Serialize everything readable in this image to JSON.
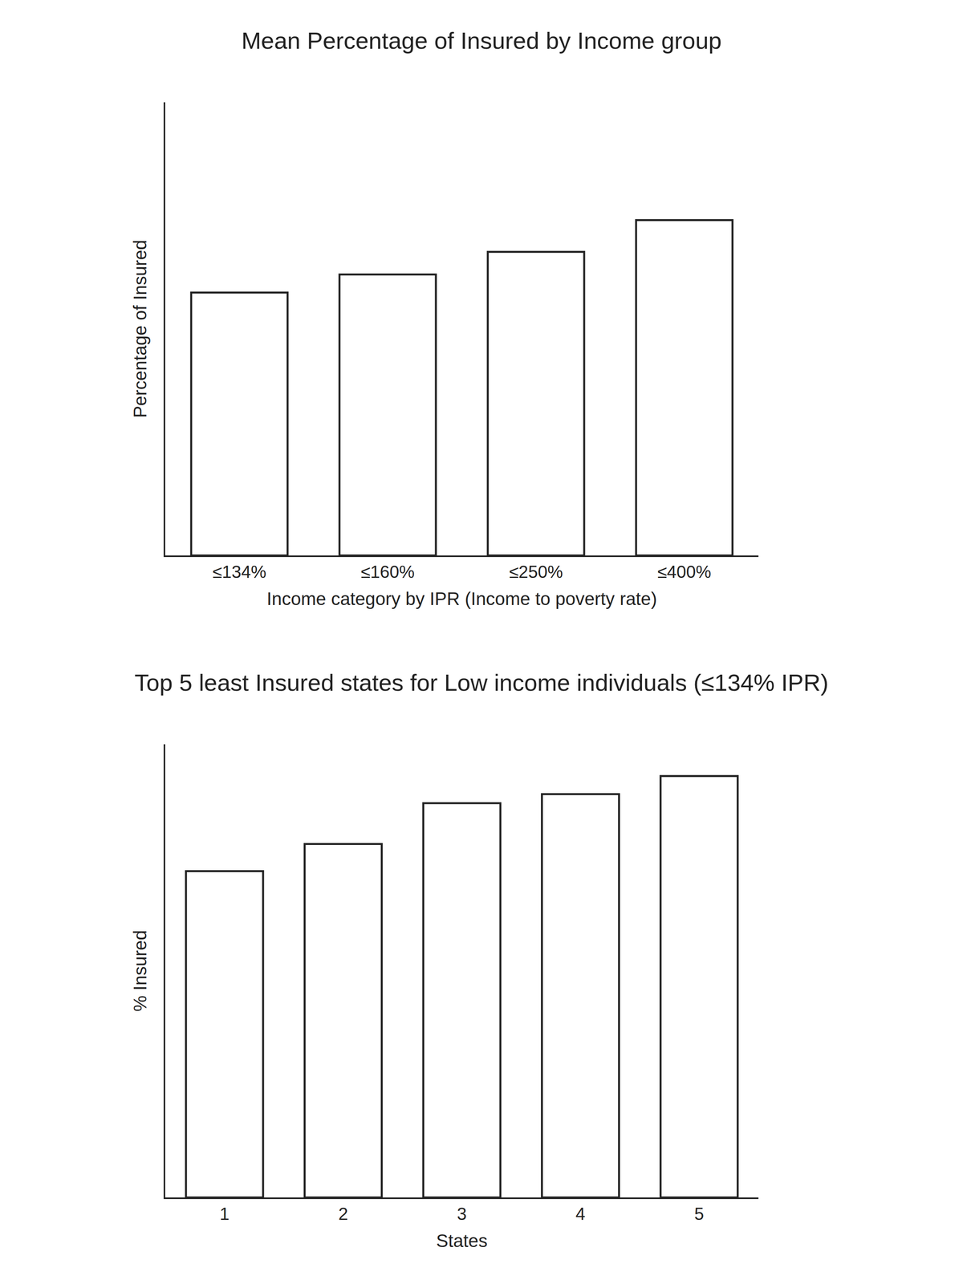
{
  "chart_data": [
    {
      "type": "bar",
      "title": "Mean Percentage of Insured by Income group",
      "xlabel": "Income category by IPR (Income to poverty rate)",
      "ylabel": "Percentage of Insured",
      "categories": [
        "≤134%",
        "≤160%",
        "≤250%",
        "≤400%"
      ],
      "values": [
        58,
        62,
        67,
        74
      ],
      "color": "#ffffff",
      "ylim": [
        0,
        100
      ],
      "yticks": [],
      "grid": false,
      "tick_labels": "x"
    },
    {
      "type": "bar",
      "title": "Top 5 least Insured states for Low income individuals (≤134% IPR)",
      "xlabel": "States",
      "ylabel": "% Insured",
      "categories": [
        "1",
        "2",
        "3",
        "4",
        "5"
      ],
      "values": [
        72,
        78,
        87,
        89,
        93
      ],
      "color": "#ffffff",
      "ylim": [
        0,
        100
      ],
      "yticks": [],
      "grid": false,
      "tick_labels": "x"
    }
  ]
}
